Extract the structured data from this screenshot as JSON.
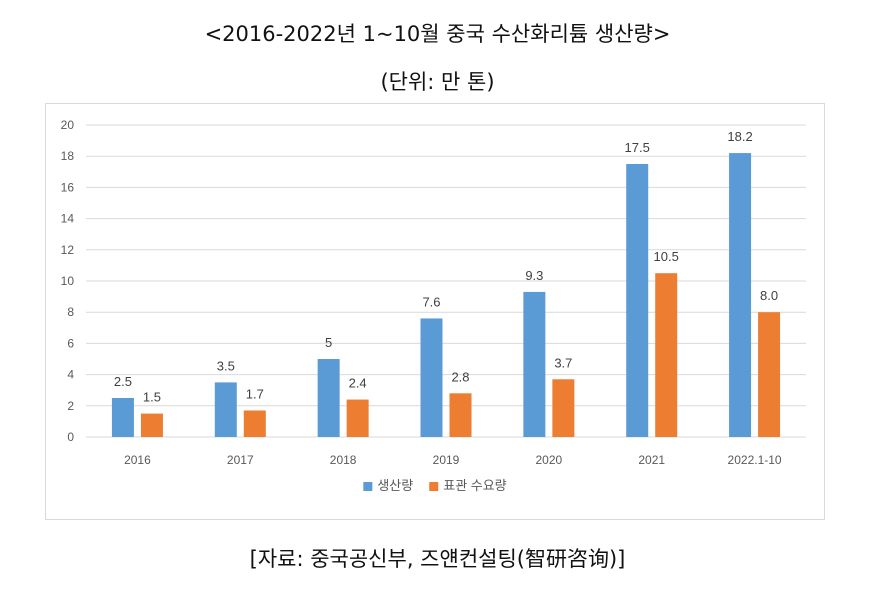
{
  "title": "<2016-2022년 1~10월 중국 수산화리튬 생산량>",
  "subtitle": "(단위: 만 톤)",
  "source": "[자료: 중국공신부, 즈얜컨설팅(智研咨询)]",
  "colors": {
    "production": "#5b9bd5",
    "demand": "#ed7d31",
    "grid": "#d9d9d9",
    "axis_text": "#595959"
  },
  "chart_data": {
    "type": "bar",
    "title": "<2016-2022년 1~10월 중국 수산화리튬 생산량>",
    "subtitle": "(단위: 만 톤)",
    "categories": [
      "2016",
      "2017",
      "2018",
      "2019",
      "2020",
      "2021",
      "2022.1-10"
    ],
    "series": [
      {
        "name": "생산량",
        "values": [
          2.5,
          3.5,
          5,
          7.6,
          9.3,
          17.5,
          18.2
        ],
        "labels": [
          "2.5",
          "3.5",
          "5",
          "7.6",
          "9.3",
          "17.5",
          "18.2"
        ]
      },
      {
        "name": "표관 수요량",
        "values": [
          1.5,
          1.7,
          2.4,
          2.8,
          3.7,
          10.5,
          8.0
        ],
        "labels": [
          "1.5",
          "1.7",
          "2.4",
          "2.8",
          "3.7",
          "10.5",
          "8.0"
        ]
      }
    ],
    "yticks": [
      "0",
      "2",
      "4",
      "6",
      "8",
      "10",
      "12",
      "14",
      "16",
      "18",
      "20"
    ],
    "ylim": [
      0,
      20
    ],
    "grid": true,
    "legend_position": "bottom"
  }
}
